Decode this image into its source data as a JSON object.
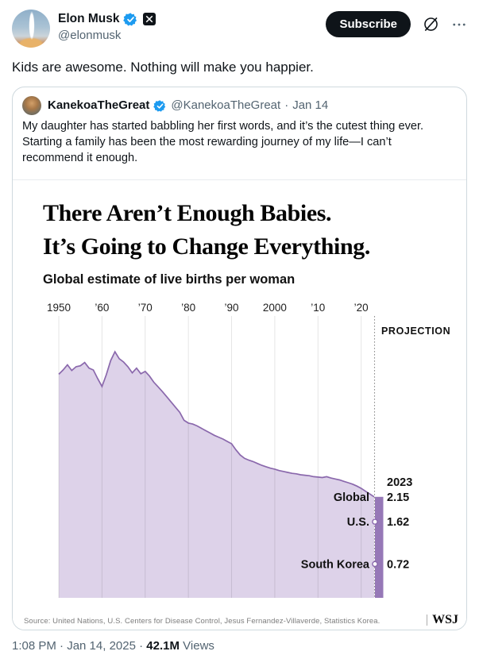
{
  "header": {
    "display_name": "Elon Musk",
    "handle": "@elonmusk",
    "subscribe_label": "Subscribe"
  },
  "tweet": {
    "text": "Kids are awesome. Nothing will make you happier."
  },
  "quote": {
    "display_name": "KanekoaTheGreat",
    "handle": "@KanekoaTheGreat",
    "separator": "·",
    "date": "Jan 14",
    "text_lines": [
      "My daughter has started babbling her first words, and it’s the cutest thing ever.",
      "Starting a family has been the most rewarding journey of my life—I can’t",
      "recommend it enough."
    ]
  },
  "chart_data": {
    "type": "area",
    "title_line1": "There Aren’t Enough Babies.",
    "title_line2": "It’s Going to Change Everything.",
    "subtitle": "Global estimate of live births per woman",
    "source": "Source: United Nations, U.S. Centers for Disease Control, Jesus Fernandez-Villaverde, Statistics Korea.",
    "logo": "WSJ",
    "x_range": [
      1950,
      2023
    ],
    "ylim": [
      0,
      6
    ],
    "grid": "vertical",
    "x_ticks": [
      {
        "label": "1950",
        "year": 1950
      },
      {
        "label": "’60",
        "year": 1960
      },
      {
        "label": "’70",
        "year": 1970
      },
      {
        "label": "’80",
        "year": 1980
      },
      {
        "label": "’90",
        "year": 1990
      },
      {
        "label": "2000",
        "year": 2000
      },
      {
        "label": "’10",
        "year": 2010
      },
      {
        "label": "’20",
        "year": 2020
      }
    ],
    "projection": {
      "label": "PROJECTION",
      "year_label": "2023",
      "year": 2023
    },
    "series": [
      {
        "name": "Global",
        "values": [
          4.76,
          4.85,
          4.96,
          4.84,
          4.92,
          4.94,
          5.01,
          4.89,
          4.85,
          4.67,
          4.5,
          4.75,
          5.05,
          5.24,
          5.09,
          5.02,
          4.92,
          4.79,
          4.89,
          4.77,
          4.82,
          4.72,
          4.59,
          4.49,
          4.39,
          4.28,
          4.17,
          4.06,
          3.95,
          3.78,
          3.72,
          3.7,
          3.66,
          3.61,
          3.56,
          3.51,
          3.46,
          3.42,
          3.38,
          3.33,
          3.28,
          3.15,
          3.04,
          2.97,
          2.93,
          2.9,
          2.86,
          2.82,
          2.79,
          2.76,
          2.74,
          2.71,
          2.69,
          2.67,
          2.65,
          2.64,
          2.62,
          2.61,
          2.6,
          2.58,
          2.57,
          2.56,
          2.58,
          2.55,
          2.53,
          2.51,
          2.48,
          2.45,
          2.42,
          2.38,
          2.33,
          2.27,
          2.21,
          2.15
        ]
      }
    ],
    "annotations": [
      {
        "label": "Global",
        "value": 2.15,
        "value_label": "2.15",
        "dot": false
      },
      {
        "label": "U.S.",
        "value": 1.62,
        "value_label": "1.62",
        "dot": true
      },
      {
        "label": "South Korea",
        "value": 0.72,
        "value_label": "0.72",
        "dot": true
      }
    ],
    "colors": {
      "area_fill": "#ddd2e9",
      "line": "#8a68ac",
      "projection_bar": "#9678b7",
      "grid": "rgba(0,0,0,0.10)",
      "dotted_line": "#8f8f8f"
    }
  },
  "footer": {
    "timestamp": "1:08 PM · Jan 14, 2025 ·",
    "views_count": "42.1M",
    "views_label": "Views"
  }
}
